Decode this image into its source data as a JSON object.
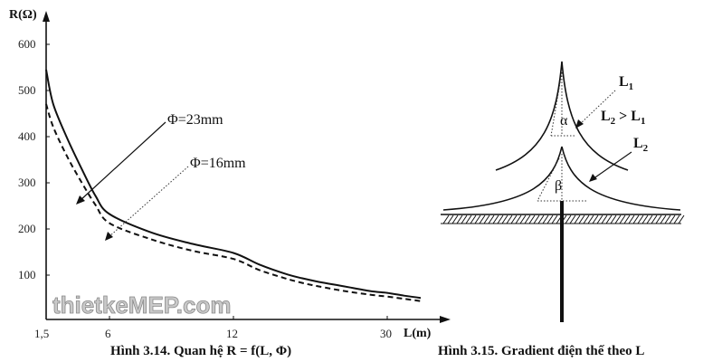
{
  "chart_data": [
    {
      "type": "line",
      "ylabel": "R(Ω)",
      "xlabel": "L(m)",
      "y_ticks": [
        "100",
        "200",
        "300",
        "400",
        "500",
        "600"
      ],
      "x_ticks": [
        "1,5",
        "6",
        "12",
        "30"
      ],
      "ylim": [
        0,
        680
      ],
      "series": [
        {
          "name": "Φ=23mm",
          "style": "solid",
          "points": [
            [
              1.5,
              545
            ],
            [
              2,
              470
            ],
            [
              3,
              395
            ],
            [
              4,
              330
            ],
            [
              5,
              270
            ],
            [
              6,
              230
            ],
            [
              8,
              190
            ],
            [
              10,
              165
            ],
            [
              12,
              145
            ],
            [
              15,
              120
            ],
            [
              18,
              100
            ],
            [
              20,
              90
            ],
            [
              22,
              82
            ],
            [
              25,
              72
            ],
            [
              28,
              62
            ],
            [
              30,
              58
            ],
            [
              33,
              52
            ],
            [
              36,
              47
            ]
          ]
        },
        {
          "name": "Φ=16mm",
          "style": "dashed",
          "points": [
            [
              1.5,
              470
            ],
            [
              2,
              420
            ],
            [
              3,
              355
            ],
            [
              4,
              300
            ],
            [
              5,
              250
            ],
            [
              6,
              210
            ],
            [
              8,
              175
            ],
            [
              10,
              150
            ],
            [
              12,
              132
            ],
            [
              15,
              108
            ],
            [
              18,
              90
            ],
            [
              20,
              80
            ],
            [
              22,
              72
            ],
            [
              25,
              62
            ],
            [
              28,
              54
            ],
            [
              30,
              50
            ],
            [
              33,
              45
            ],
            [
              36,
              40
            ]
          ]
        }
      ],
      "annotations": [
        "Φ=23mm",
        "Φ=16mm"
      ],
      "caption": "Hình 3.14.  Quan hệ R = f(L, Φ)"
    }
  ],
  "diagram": {
    "label_l1": "L",
    "label_l1_sub": "1",
    "label_cmp": "L",
    "label_cmp_sub2": "2",
    "label_cmp_op": " > L",
    "label_cmp_sub1": "1",
    "label_l2": "L",
    "label_l2_sub": "2",
    "angle_alpha": "α",
    "angle_beta": "β",
    "caption": "Hình 3.15.  Gradient điện thế theo L"
  },
  "watermark": "thietkeMEP.com"
}
